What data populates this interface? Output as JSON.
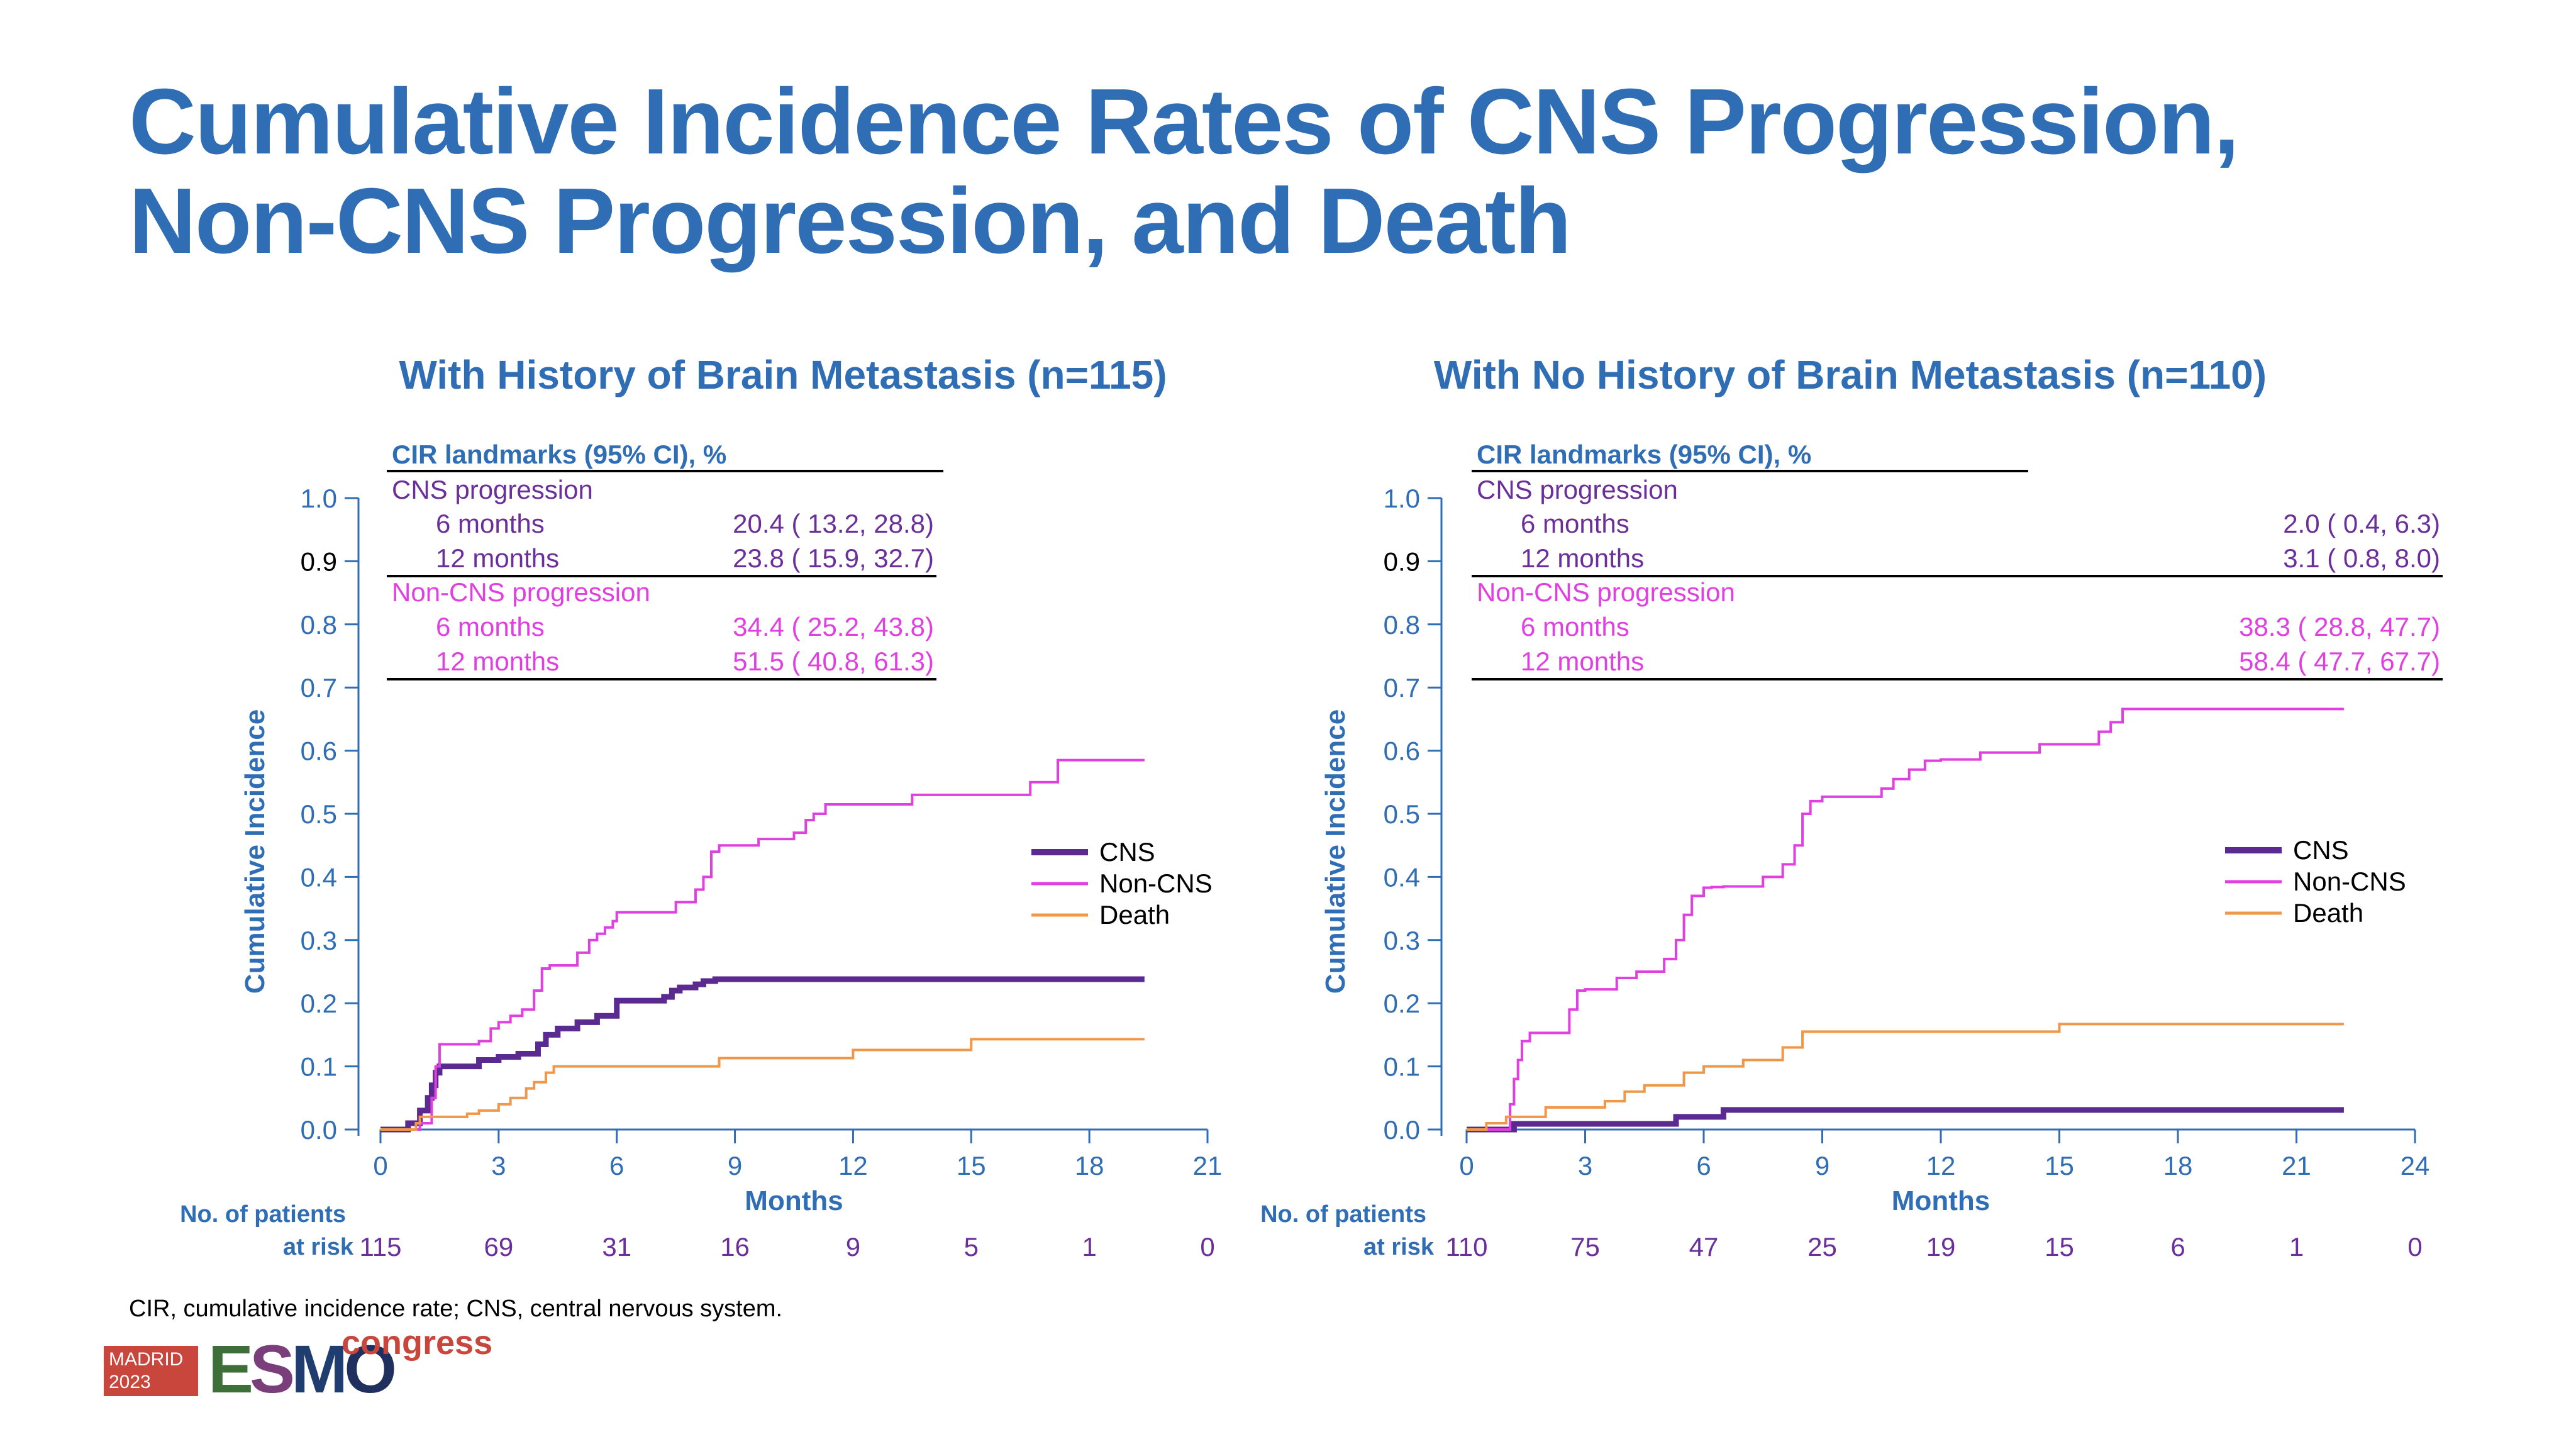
{
  "title": {
    "line1": "Cumulative Incidence Rates of CNS Progression,",
    "line2": "Non-CNS Progression, and Death"
  },
  "footnote": "CIR, cumulative incidence rate; CNS, central nervous system.",
  "logo": {
    "city": "MADRID",
    "year": "2023",
    "letters": [
      "E",
      "S",
      "M",
      "O"
    ],
    "letter_colors": [
      "#3e6e3a",
      "#7a3f7a",
      "#1f3d6e",
      "#1f2f5e"
    ],
    "word": "congress"
  },
  "colors": {
    "title": "#2f6db5",
    "axis": "#2f6db5",
    "CNS": "#5b2a91",
    "Non-CNS": "#e040e0",
    "Death": "#f0984a",
    "cns_text": "#6a2f9a",
    "noncns_text": "#e040e0"
  },
  "chart_data": [
    {
      "type": "line",
      "title": "With History of Brain Metastasis (n=115)",
      "xlabel": "Months",
      "ylabel": "Cumulative Incidence",
      "xlim": [
        0,
        21
      ],
      "ylim": [
        0,
        1
      ],
      "xticks": [
        0,
        3,
        6,
        9,
        12,
        15,
        18,
        21
      ],
      "yticks": [
        "0.0",
        "0.1",
        "0.2",
        "0.3",
        "0.4",
        "0.5",
        "0.6",
        "0.7",
        "0.8",
        "0.9",
        "1.0"
      ],
      "grid": false,
      "legend_position": "right-middle",
      "legend": [
        "CNS",
        "Non-CNS",
        "Death"
      ],
      "landmarks": {
        "header": "CIR landmarks (95% CI), %",
        "groups": [
          {
            "name": "CNS progression",
            "rows": [
              {
                "label": "6 months",
                "value": "20.4 ( 13.2,  28.8)"
              },
              {
                "label": "12 months",
                "value": "23.8 ( 15.9,  32.7)"
              }
            ]
          },
          {
            "name": "Non-CNS progression",
            "rows": [
              {
                "label": "6 months",
                "value": "34.4 ( 25.2,  43.8)"
              },
              {
                "label": "12 months",
                "value": "51.5 ( 40.8,  61.3)"
              }
            ]
          }
        ]
      },
      "at_risk": {
        "label_line1": "No. of patients",
        "label_line2": "at risk",
        "times": [
          0,
          3,
          6,
          9,
          12,
          15,
          18,
          21
        ],
        "values": [
          "115",
          "69",
          "31",
          "16",
          "9",
          "5",
          "1",
          "0"
        ]
      },
      "series": [
        {
          "name": "CNS",
          "x": [
            0,
            0.7,
            1.0,
            1.2,
            1.3,
            1.4,
            1.5,
            2.5,
            3.0,
            3.5,
            4.0,
            4.2,
            4.5,
            5.0,
            5.5,
            6.0,
            7.2,
            7.4,
            7.6,
            8.0,
            8.2,
            8.5,
            9.0,
            19.4
          ],
          "y": [
            0,
            0.01,
            0.03,
            0.05,
            0.07,
            0.09,
            0.1,
            0.11,
            0.115,
            0.12,
            0.135,
            0.15,
            0.16,
            0.17,
            0.18,
            0.204,
            0.21,
            0.22,
            0.225,
            0.23,
            0.235,
            0.238,
            0.238,
            0.238
          ]
        },
        {
          "name": "Non-CNS",
          "x": [
            0,
            1.0,
            1.3,
            1.4,
            1.5,
            2.5,
            2.8,
            3.0,
            3.3,
            3.6,
            3.9,
            4.1,
            4.3,
            5.0,
            5.3,
            5.5,
            5.7,
            5.9,
            6.0,
            7.5,
            8.0,
            8.2,
            8.4,
            8.6,
            9.0,
            9.6,
            10.5,
            10.8,
            11.0,
            11.3,
            13.5,
            16.5,
            17.2,
            19.4
          ],
          "y": [
            0,
            0.01,
            0.05,
            0.1,
            0.135,
            0.14,
            0.16,
            0.17,
            0.18,
            0.19,
            0.22,
            0.255,
            0.26,
            0.28,
            0.3,
            0.31,
            0.32,
            0.33,
            0.344,
            0.36,
            0.38,
            0.4,
            0.44,
            0.45,
            0.45,
            0.46,
            0.47,
            0.49,
            0.5,
            0.515,
            0.53,
            0.55,
            0.585,
            0.585
          ]
        },
        {
          "name": "Death",
          "x": [
            0,
            0.9,
            1.0,
            2.2,
            2.5,
            3.0,
            3.3,
            3.7,
            3.9,
            4.2,
            4.4,
            5.0,
            8.6,
            12.0,
            15.0,
            19.4
          ],
          "y": [
            0,
            0.01,
            0.02,
            0.025,
            0.03,
            0.04,
            0.05,
            0.065,
            0.075,
            0.09,
            0.1,
            0.1,
            0.113,
            0.126,
            0.143,
            0.143
          ]
        }
      ]
    },
    {
      "type": "line",
      "title": "With No History of Brain Metastasis (n=110)",
      "xlabel": "Months",
      "ylabel": "Cumulative Incidence",
      "xlim": [
        0,
        24
      ],
      "ylim": [
        0,
        1
      ],
      "xticks": [
        0,
        3,
        6,
        9,
        12,
        15,
        18,
        21,
        24
      ],
      "yticks": [
        "0.0",
        "0.1",
        "0.2",
        "0.3",
        "0.4",
        "0.5",
        "0.6",
        "0.7",
        "0.8",
        "0.9",
        "1.0"
      ],
      "grid": false,
      "legend_position": "right-middle",
      "legend": [
        "CNS",
        "Non-CNS",
        "Death"
      ],
      "landmarks": {
        "header": "CIR landmarks (95% CI), %",
        "groups": [
          {
            "name": "CNS progression",
            "rows": [
              {
                "label": "6 months",
                "value": "2.0 (  0.4,   6.3)"
              },
              {
                "label": "12 months",
                "value": "3.1 (  0.8,   8.0)"
              }
            ]
          },
          {
            "name": "Non-CNS progression",
            "rows": [
              {
                "label": "6 months",
                "value": "38.3 ( 28.8,  47.7)"
              },
              {
                "label": "12 months",
                "value": "58.4 ( 47.7,  67.7)"
              }
            ]
          }
        ]
      },
      "at_risk": {
        "label_line1": "No. of patients",
        "label_line2": "at risk",
        "times": [
          0,
          3,
          6,
          9,
          12,
          15,
          18,
          21,
          24
        ],
        "values": [
          "110",
          "75",
          "47",
          "25",
          "19",
          "15",
          "6",
          "1",
          "0"
        ]
      },
      "series": [
        {
          "name": "CNS",
          "x": [
            0,
            1.2,
            5.3,
            6.5,
            22.2
          ],
          "y": [
            0,
            0.009,
            0.02,
            0.031,
            0.031
          ]
        },
        {
          "name": "Non-CNS",
          "x": [
            0,
            1.1,
            1.2,
            1.3,
            1.4,
            1.6,
            2.6,
            2.8,
            3.0,
            3.8,
            4.3,
            5.0,
            5.3,
            5.5,
            5.7,
            6.0,
            6.2,
            6.5,
            7.5,
            8.0,
            8.3,
            8.5,
            8.7,
            9.0,
            10.5,
            10.8,
            11.2,
            11.6,
            12.0,
            13.0,
            14.5,
            16.0,
            16.3,
            16.6,
            22.2
          ],
          "y": [
            0,
            0.04,
            0.08,
            0.11,
            0.14,
            0.153,
            0.19,
            0.22,
            0.222,
            0.24,
            0.25,
            0.27,
            0.3,
            0.34,
            0.37,
            0.383,
            0.384,
            0.385,
            0.4,
            0.42,
            0.45,
            0.5,
            0.52,
            0.527,
            0.54,
            0.555,
            0.57,
            0.584,
            0.586,
            0.597,
            0.61,
            0.63,
            0.645,
            0.666,
            0.666
          ]
        },
        {
          "name": "Death",
          "x": [
            0,
            0.5,
            1.0,
            2.0,
            3.5,
            4.0,
            4.5,
            5.5,
            6.0,
            7.0,
            8.0,
            8.5,
            13.0,
            15.0,
            22.2
          ],
          "y": [
            0,
            0.01,
            0.02,
            0.035,
            0.045,
            0.06,
            0.07,
            0.09,
            0.1,
            0.11,
            0.13,
            0.155,
            0.155,
            0.167,
            0.167
          ]
        }
      ]
    }
  ]
}
